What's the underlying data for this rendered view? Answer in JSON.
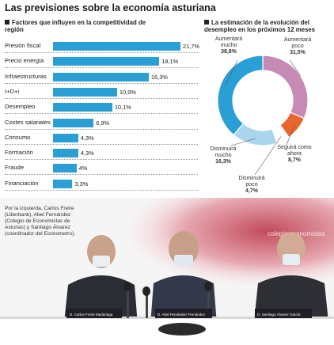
{
  "headline": "Las previsiones sobre la economía asturiana",
  "chart_data": [
    {
      "type": "bar",
      "title": "Factores que influyen en la competitividad de región",
      "categories": [
        "Presión fiscal",
        "Precio energía",
        "Infraestructuras",
        "I+D+i",
        "Desempleo",
        "Costes salariales",
        "Consumo",
        "Formación",
        "Fraude",
        "Financiación"
      ],
      "values": [
        21.7,
        18.1,
        16.3,
        10.9,
        10.1,
        6.9,
        4.3,
        4.3,
        4,
        3.3
      ],
      "value_labels": [
        "21,7%",
        "18,1%",
        "16,3%",
        "10,9%",
        "10,1%",
        "6,9%",
        "4,3%",
        "4,3%",
        "4%",
        "3,3%"
      ],
      "xlim": [
        0,
        21.7
      ],
      "color": "#2a9fd6"
    },
    {
      "type": "pie",
      "title": "La estimación de la evolución del desempleo en los próximos 12 meses",
      "slices": [
        {
          "label": "Aumentará poco",
          "value": 31.5,
          "value_label": "31,5%",
          "color": "#c58bb4"
        },
        {
          "label": "Seguirá como ahora",
          "value": 8.7,
          "value_label": "8,7%",
          "color": "#e8662c"
        },
        {
          "label": "Disminuirá poco",
          "value": 4.7,
          "value_label": "4,7%",
          "color": "#ffffff"
        },
        {
          "label": "Disminuirá mucho",
          "value": 16.3,
          "value_label": "16,3%",
          "color": "#a9d6ee"
        },
        {
          "label": "Aumentará mucho",
          "value": 38.8,
          "value_label": "38,8%",
          "color": "#2a9fd6"
        }
      ]
    }
  ],
  "caption": "Por la izquierda, Carlos Freire (Liberbank), Abel Fernández (Colegio de Economistas de Asturias) y Santiago Álvarez (coordinador del Econometro).",
  "photo_text": {
    "backdrop_word": "colegio economistas",
    "nameplates": [
      "D. Carlos Freire Madariaga",
      "D. Abel Fernández Fernández",
      "D. Santiago Álvarez García"
    ]
  }
}
